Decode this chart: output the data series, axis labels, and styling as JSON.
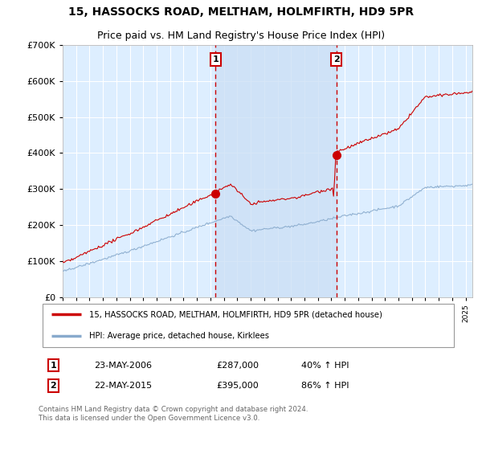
{
  "title": "15, HASSOCKS ROAD, MELTHAM, HOLMFIRTH, HD9 5PR",
  "subtitle": "Price paid vs. HM Land Registry's House Price Index (HPI)",
  "ylim": [
    0,
    700000
  ],
  "xlim_start": 1995.0,
  "xlim_end": 2025.5,
  "background_color": "#ffffff",
  "plot_bg_color": "#ddeeff",
  "shade_color": "#cce0f5",
  "grid_color": "#ffffff",
  "sale1_year": 2006.38,
  "sale1_price": 287000,
  "sale2_year": 2015.38,
  "sale2_price": 395000,
  "sale1_label": "1",
  "sale2_label": "2",
  "sale1_date": "23-MAY-2006",
  "sale2_date": "22-MAY-2015",
  "sale1_hpi": "40% ↑ HPI",
  "sale2_hpi": "86% ↑ HPI",
  "legend_property": "15, HASSOCKS ROAD, MELTHAM, HOLMFIRTH, HD9 5PR (detached house)",
  "legend_hpi": "HPI: Average price, detached house, Kirklees",
  "footer": "Contains HM Land Registry data © Crown copyright and database right 2024.\nThis data is licensed under the Open Government Licence v3.0.",
  "title_fontsize": 10,
  "subtitle_fontsize": 9,
  "property_line_color": "#cc0000",
  "hpi_line_color": "#88aacc",
  "vline_color": "#cc0000",
  "marker_box_color": "#cc0000"
}
